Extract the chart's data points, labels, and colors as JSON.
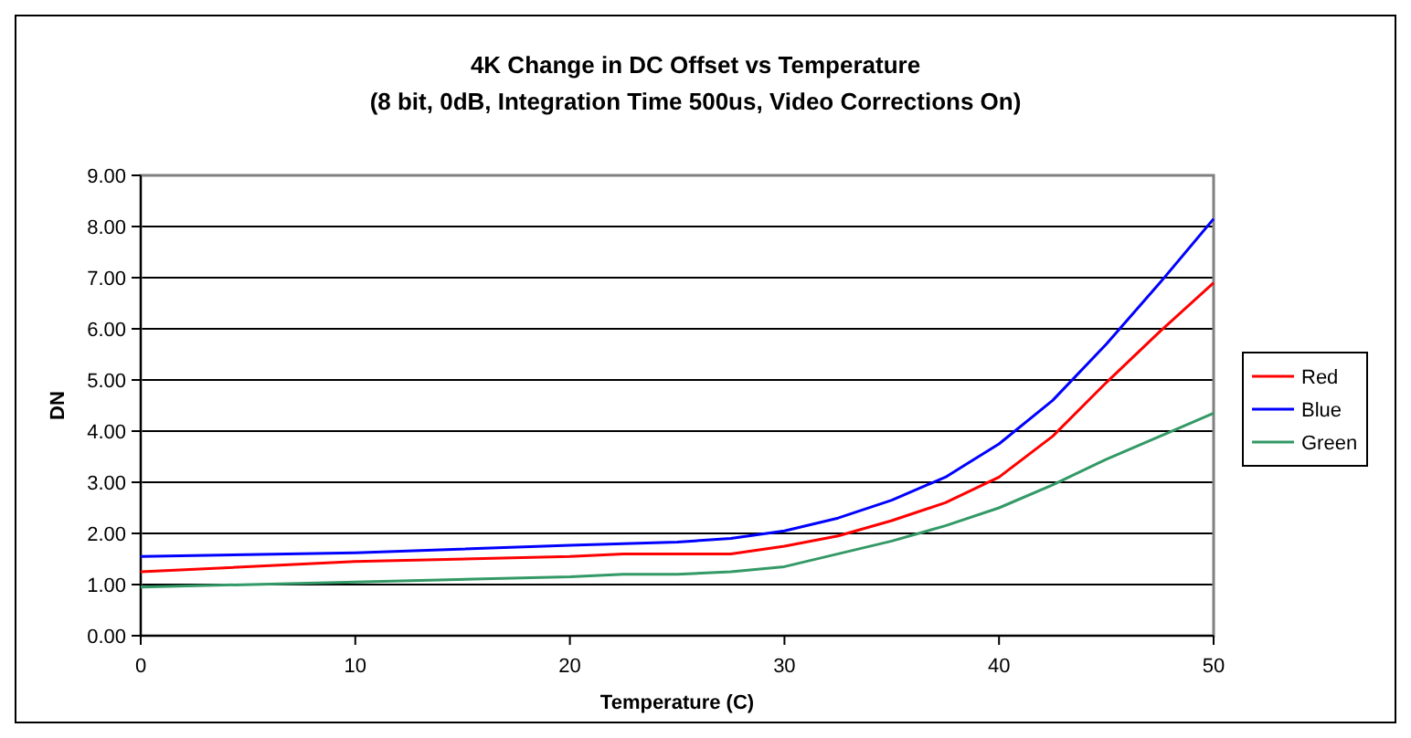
{
  "chart_data": {
    "type": "line",
    "title": "4K Change in DC Offset vs Temperature",
    "subtitle": "(8 bit, 0dB, Integration Time 500us, Video Corrections On)",
    "xlabel": "Temperature (C)",
    "ylabel": "DN",
    "x": [
      0,
      10,
      20,
      22.5,
      25,
      27.5,
      30,
      32.5,
      35,
      37.5,
      40,
      42.5,
      45,
      47.5,
      50
    ],
    "series": [
      {
        "name": "Red",
        "color": "#ff0000",
        "values": [
          1.25,
          1.45,
          1.55,
          1.6,
          1.6,
          1.6,
          1.75,
          1.95,
          2.25,
          2.6,
          3.1,
          3.9,
          4.95,
          5.95,
          6.9
        ]
      },
      {
        "name": "Blue",
        "color": "#0000ff",
        "values": [
          1.55,
          1.62,
          1.77,
          1.8,
          1.83,
          1.9,
          2.05,
          2.3,
          2.65,
          3.1,
          3.75,
          4.6,
          5.7,
          6.9,
          8.15
        ]
      },
      {
        "name": "Green",
        "color": "#339966",
        "values": [
          0.95,
          1.05,
          1.15,
          1.2,
          1.2,
          1.25,
          1.35,
          1.6,
          1.85,
          2.15,
          2.5,
          2.95,
          3.45,
          3.9,
          4.35
        ]
      }
    ],
    "xlim": [
      0,
      50
    ],
    "xticks": [
      0,
      10,
      20,
      30,
      40,
      50
    ],
    "ylim": [
      0,
      9
    ],
    "yticks": [
      {
        "value": 0,
        "label": "0.00"
      },
      {
        "value": 1,
        "label": "1.00"
      },
      {
        "value": 2,
        "label": "2.00"
      },
      {
        "value": 3,
        "label": "3.00"
      },
      {
        "value": 4,
        "label": "4.00"
      },
      {
        "value": 5,
        "label": "5.00"
      },
      {
        "value": 6,
        "label": "6.00"
      },
      {
        "value": 7,
        "label": "7.00"
      },
      {
        "value": 8,
        "label": "8.00"
      },
      {
        "value": 9,
        "label": "9.00"
      }
    ],
    "grid": "y",
    "legend": "right",
    "marker": "none",
    "line_style": "solid"
  }
}
